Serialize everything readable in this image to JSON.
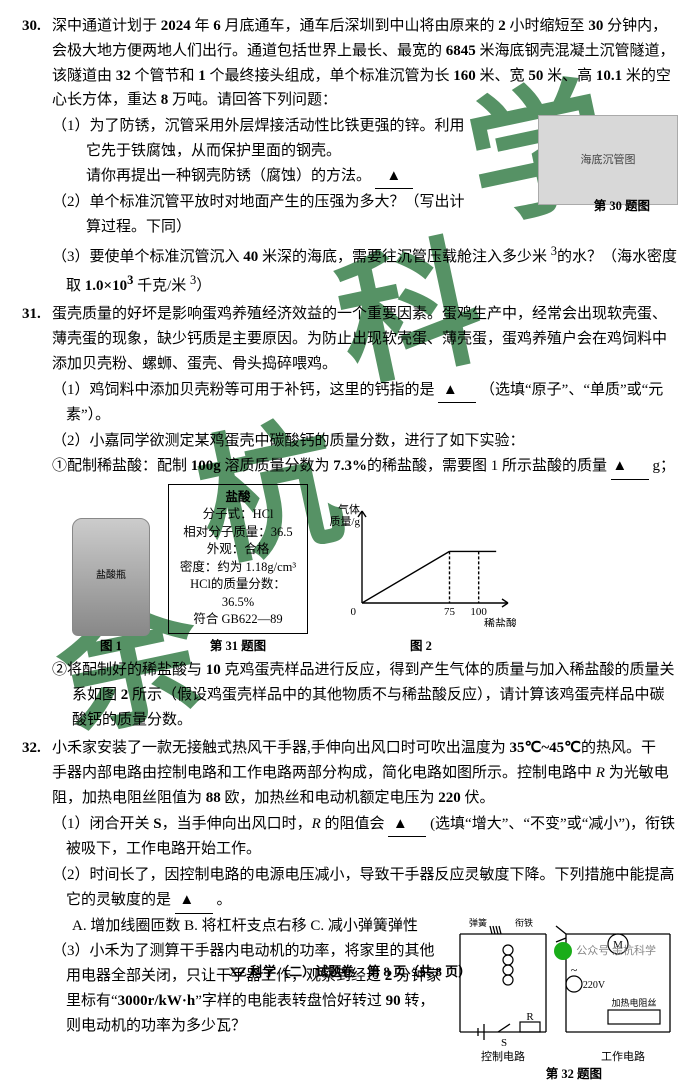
{
  "q30": {
    "num": "30.",
    "intro_l1": "深中通道计划于 <b>2024</b> 年 <b>6</b> 月底通车，通车后深圳到中山将由原来的 <b>2</b> 小时缩短至 <b>30</b> 分钟内，",
    "intro_l2": "会极大地方便两地人们出行。通道包括世界上最长、最宽的 <b>6845</b> 米海底钢壳混凝土沉管隧道，",
    "intro_l3": "该隧道由 <b>32</b> 个管节和 <b>1</b> 个最终接头组成，单个标准沉管为长 <b>160</b> 米、宽 <b>50</b> 米、高 <b>10.1</b> 米的空",
    "intro_l4": "心长方体，重达 <b>8</b> 万吨。请回答下列问题：",
    "s1a": "（1）为了防锈，沉管采用外层焊接活动性比铁更强的锌。利用",
    "s1b": "它先于铁腐蚀，从而保护里面的钢壳。",
    "s1c": "请你再提出一种钢壳防锈（腐蚀）的方法。",
    "s2a": "（2）单个标准沉管平放时对地面产生的压强为多大？（写出计",
    "s2b": "算过程。下同）",
    "s3": "（3）要使单个标准沉管沉入 <b>40</b> 米深的海底，需要往沉管压载舱注入多少米 <sup>3</sup>的水？（海水密度取 <b>1.0×10<sup>3</sup></b> 千克/米 <sup>3</sup>）",
    "img": "海底沉管图",
    "cap": "第 30 题图"
  },
  "q31": {
    "num": "31.",
    "intro_l1": "蛋壳质量的好坏是影响蛋鸡养殖经济效益的一个重要因素。蛋鸡生产中，经常会出现软壳蛋、",
    "intro_l2": "薄壳蛋的现象，缺少钙质是主要原因。为防止出现软壳蛋、薄壳蛋，蛋鸡养殖户会在鸡饲料中",
    "intro_l3": "添加贝壳粉、螺蛳、蛋壳、骨头捣碎喂鸡。",
    "s1": "（1）鸡饲料中添加贝壳粉等可用于补钙，这里的钙指的是 <span class='blank'>▲</span> （选填“原子”、“单质”或“元素”）。",
    "s2": "（2）小嘉同学欲测定某鸡蛋壳中碳酸钙的质量分数，进行了如下实验：",
    "s2a": "①配制稀盐酸：配制 <b>100g</b> 溶质质量分数为 <b>7.3%</b>的稀盐酸，需要图 1 所示盐酸的质量 <span class='blank'>▲</span> g；",
    "s2b": "②将配制好的稀盐酸与 <b>10</b> 克鸡蛋壳样品进行反应，得到产生气体的质量与加入稀盐酸的质量关系如图 <b>2</b> 所示（假设鸡蛋壳样品中的其他物质不与稀盐酸反应），请计算该鸡蛋壳样品中碳酸钙的质量分数。",
    "label_title": "盐酸",
    "label_rows": [
      "分子式：HCl",
      "相对分子质量：36.5",
      "外观：合格",
      "密度：约为 1.18g/cm³",
      "HCl的质量分数：36.5%",
      "符合 GB622—89"
    ],
    "cap_mid": "第 31 题图",
    "cap1": "图 1",
    "cap2": "图 2",
    "chart": {
      "ylabel": "气体\n质量/g",
      "xlabel": "稀盐酸的质量/g",
      "xticks": [
        "0",
        "75",
        "100"
      ],
      "xlim": [
        0,
        120
      ],
      "ylim": [
        0,
        10
      ],
      "plateau_x": 75,
      "plateau_y": 6,
      "stroke": "#000"
    }
  },
  "q32": {
    "num": "32.",
    "intro_l1": "小禾家安装了一款无接触式热风干手器,手伸向出风口时可吹出温度为 <b>35℃~45℃</b>的热风。干",
    "intro_l2": "手器内部电路由控制电路和工作电路两部分构成，简化电路如图所示。控制电路中 <i>R</i> 为光敏电",
    "intro_l3": "阻，加热电阻丝阻值为 <b>88</b> 欧，加热丝和电动机额定电压为 <b>220</b> 伏。",
    "s1": "（1）闭合开关 <b>S</b>，当手伸向出风口时，<i>R</i> 的阻值会 <span class='blank'>▲</span> (选填“增大”、“不变”或“减小”)，衔铁被吸下，工作电路开始工作。",
    "s2": "（2）时间长了，因控制电路的电源电压减小，导致干手器反应灵敏度下降。下列措施中能提高它的灵敏度的是 <span class='blank'>▲</span> 。",
    "opts": "A. 增加线圈匝数  B. 将杠杆支点右移  C. 减小弹簧弹性",
    "s3": "（3）小禾为了测算干手器内电动机的功率，将家里的其他用电器全部关闭，只让干手器工作，观察到经过 <b>2</b> 分钟家里标有“<b>3000r/kW·h</b>”字样的电能表转盘恰好转过 <b>90</b> 转，则电动机的功率为多少瓦？",
    "cap": "第 32 题图",
    "circ": {
      "labels": {
        "left": "控制电路",
        "right": "工作电路",
        "v": "220V",
        "heat": "加热电阻丝",
        "spring": "弹簧",
        "armature": "衔铁",
        "motor": "M",
        "R": "R",
        "S": "S"
      }
    }
  },
  "footer": "XZ 科学（二）试题卷　第 8 页（共 8 页）",
  "watermark": "余杭科学",
  "logo_text": "公众号 余杭科学"
}
